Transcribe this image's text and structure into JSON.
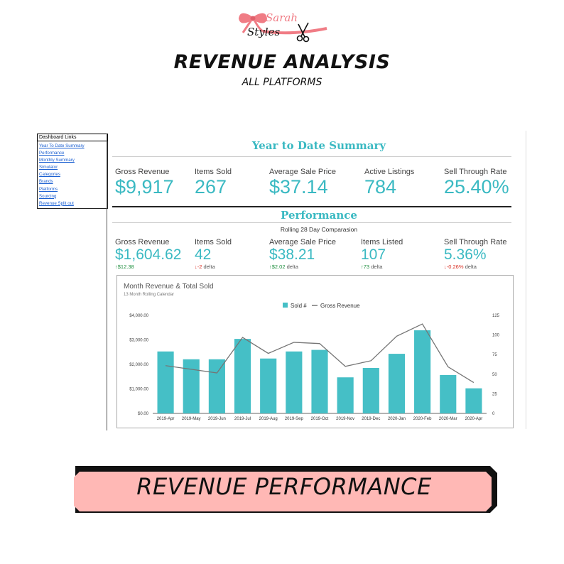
{
  "header": {
    "brand": "Sarah Styles",
    "title": "REVENUE ANALYSIS",
    "subtitle": "ALL PLATFORMS"
  },
  "sidebar": {
    "title": "Dashboard Links",
    "items": [
      {
        "label": "Year To Date Summary"
      },
      {
        "label": "Performance"
      },
      {
        "label": "Monthly Summary"
      },
      {
        "label": "Simulator"
      },
      {
        "label": "Categories"
      },
      {
        "label": "Brands"
      },
      {
        "label": "Platforms"
      },
      {
        "label": "Sourcing"
      },
      {
        "label": "Revenue Split out"
      }
    ]
  },
  "ytd": {
    "title": "Year to Date Summary",
    "kpis": [
      {
        "label": "Gross Revenue",
        "value": "$9,917"
      },
      {
        "label": "Items Sold",
        "value": "267"
      },
      {
        "label": "Average Sale Price",
        "value": "$37.14"
      },
      {
        "label": "Active Listings",
        "value": "784"
      },
      {
        "label": "Sell Through Rate",
        "value": "25.40%"
      }
    ]
  },
  "performance": {
    "title": "Performance",
    "subtitle": "Rolling 28 Day Comparasion",
    "kpis": [
      {
        "label": "Gross Revenue",
        "value": "$1,604.62",
        "delta": "↑$12.38",
        "delta_suffix": "",
        "direction": "up"
      },
      {
        "label": "Items Sold",
        "value": "42",
        "delta": "↓-2",
        "delta_suffix": "delta",
        "direction": "down"
      },
      {
        "label": "Average Sale Price",
        "value": "$38.21",
        "delta": "↑$2.02",
        "delta_suffix": "delta",
        "direction": "up"
      },
      {
        "label": "Items Listed",
        "value": "107",
        "delta": "↑73",
        "delta_suffix": "delta",
        "direction": "up"
      },
      {
        "label": "Sell Through Rate",
        "value": "5.36%",
        "delta": "↓-0.26%",
        "delta_suffix": "delta",
        "direction": "down"
      }
    ]
  },
  "chart_data": {
    "type": "bar",
    "title": "Month Revenue & Total Sold",
    "subtitle": "13 Month Rolling Calendar",
    "categories": [
      "2019-Apr",
      "2019-May",
      "2019-Jun",
      "2019-Jul",
      "2019-Aug",
      "2019-Sep",
      "2019-Oct",
      "2019-Nov",
      "2019-Dec",
      "2020-Jan",
      "2020-Feb",
      "2020-Mar",
      "2020-Apr"
    ],
    "series": [
      {
        "name": "Sold #",
        "type": "bar",
        "axis": "right",
        "color": "#45bfc6",
        "values": [
          79,
          69,
          69,
          95,
          70,
          79,
          81,
          46,
          58,
          76,
          106,
          49,
          32
        ]
      },
      {
        "name": "Gross Revenue",
        "type": "line",
        "axis": "left",
        "color": "#757575",
        "values": [
          1950,
          1800,
          1650,
          3100,
          2450,
          2900,
          2850,
          1920,
          2150,
          3150,
          3650,
          1900,
          1260
        ]
      }
    ],
    "left_axis": {
      "ticks": [
        "$0.00",
        "$1,000.00",
        "$2,000.00",
        "$3,000.00",
        "$4,000.00"
      ],
      "min": 0,
      "max": 4000
    },
    "right_axis": {
      "ticks": [
        "0",
        "25",
        "50",
        "75",
        "100",
        "125"
      ],
      "min": 0,
      "max": 125
    },
    "legend_position": "top"
  },
  "banner": {
    "text": "REVENUE PERFORMANCE"
  },
  "colors": {
    "accent": "#3ab9c2",
    "bar": "#45bfc6",
    "line": "#757575",
    "banner_fill": "#ffb8b5",
    "brand_pink": "#f07c85"
  }
}
